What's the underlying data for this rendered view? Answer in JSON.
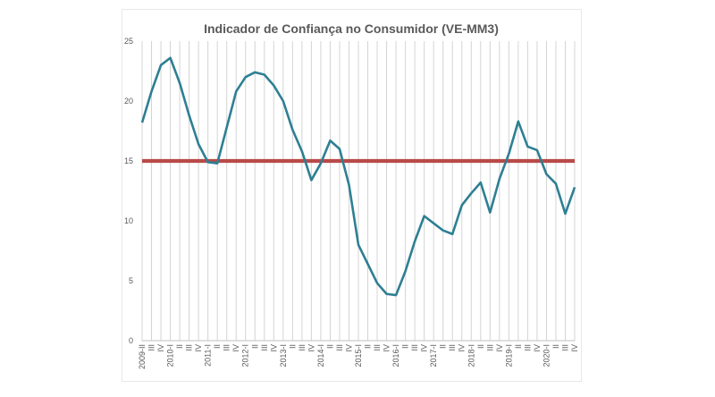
{
  "chart_data": {
    "type": "line",
    "title": "Indicador de Confiança no Consumidor (VE-MM3)",
    "xlabel": "",
    "ylabel": "",
    "ylim": [
      0,
      25
    ],
    "yticks": [
      "0",
      "5",
      "10",
      "15",
      "20",
      "25"
    ],
    "grid": "vertical",
    "legend": "none",
    "categories": [
      "2009-II",
      "III",
      "IV",
      "2010-I",
      "II",
      "III",
      "IV",
      "2011-I",
      "II",
      "III",
      "IV",
      "2012-I",
      "II",
      "III",
      "IV",
      "2013-I",
      "II",
      "III",
      "IV",
      "2014-I",
      "II",
      "III",
      "IV",
      "2015-I",
      "II",
      "III",
      "IV",
      "2016-I",
      "II",
      "III",
      "IV",
      "2017-I",
      "II",
      "III",
      "IV",
      "2018-I",
      "II",
      "III",
      "IV",
      "2019-I",
      "II",
      "III",
      "IV",
      "2020-I",
      "II",
      "III",
      "IV"
    ],
    "series": [
      {
        "color": "#2e7f93",
        "values": [
          18.2,
          20.8,
          23.0,
          23.6,
          21.5,
          18.8,
          16.4,
          14.9,
          14.8,
          17.8,
          20.8,
          22.0,
          22.4,
          22.2,
          21.3,
          20.0,
          17.6,
          15.8,
          13.4,
          14.8,
          16.7,
          16.0,
          13.0,
          8.0,
          6.4,
          4.8,
          3.9,
          3.8,
          5.8,
          8.3,
          10.4,
          9.8,
          9.2,
          8.9,
          11.3,
          12.3,
          13.2,
          10.7,
          13.5,
          15.6,
          18.3,
          16.2,
          15.9,
          13.9,
          13.1,
          10.6,
          12.8
        ]
      },
      {
        "color": "#b94a48",
        "values": [
          15,
          15,
          15,
          15,
          15,
          15,
          15,
          15,
          15,
          15,
          15,
          15,
          15,
          15,
          15,
          15,
          15,
          15,
          15,
          15,
          15,
          15,
          15,
          15,
          15,
          15,
          15,
          15,
          15,
          15,
          15,
          15,
          15,
          15,
          15,
          15,
          15,
          15,
          15,
          15,
          15,
          15,
          15,
          15,
          15,
          15,
          15
        ]
      }
    ]
  }
}
